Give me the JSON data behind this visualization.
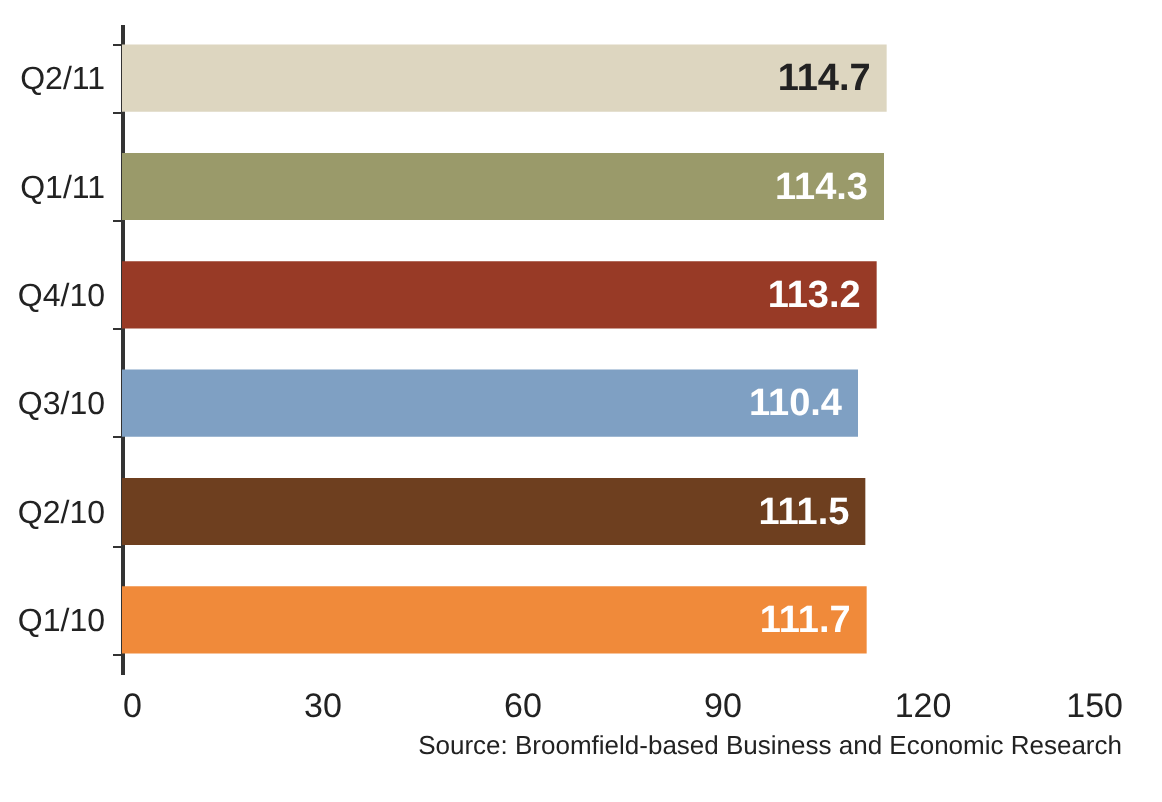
{
  "chart_data": {
    "type": "bar",
    "orientation": "horizontal",
    "categories": [
      "Q2/11",
      "Q1/11",
      "Q4/10",
      "Q3/10",
      "Q2/10",
      "Q1/10"
    ],
    "values": [
      114.7,
      114.3,
      113.2,
      110.4,
      111.5,
      111.7
    ],
    "colors": [
      "#ddd6c0",
      "#9a9a6a",
      "#983a26",
      "#7fa0c3",
      "#6e3f1f",
      "#f08a3a"
    ],
    "xlim": [
      0,
      150
    ],
    "xticks": [
      0,
      30,
      60,
      90,
      120,
      150
    ],
    "data_labels": true,
    "grid": false,
    "annotations": [
      "Source: Broomfield-based Business and Economic Research"
    ]
  }
}
